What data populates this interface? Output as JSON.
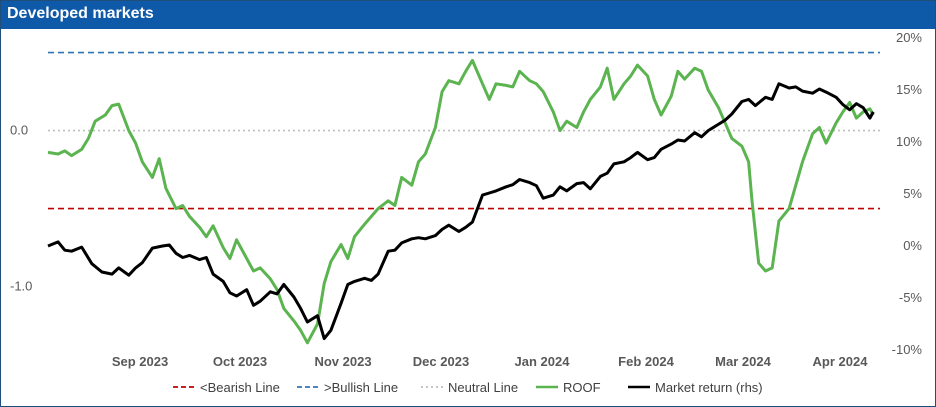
{
  "header": {
    "title": "Developed markets"
  },
  "chart_data": {
    "type": "line",
    "left_axis": {
      "ticks": [
        0.0,
        -1.0
      ],
      "tick_labels": [
        "0.0",
        "-1.0"
      ],
      "range": [
        -1.4,
        0.6
      ]
    },
    "right_axis": {
      "ticks": [
        20,
        15,
        10,
        5,
        0,
        -5,
        -10
      ],
      "tick_labels": [
        "20%",
        "15%",
        "10%",
        "5%",
        "0%",
        "-5%",
        "-10%"
      ],
      "range": [
        -10,
        20
      ]
    },
    "x_tick_labels": [
      "Sep 2023",
      "Oct 2023",
      "Nov 2023",
      "Dec 2023",
      "Jan 2024",
      "Feb 2024",
      "Mar 2024",
      "Apr 2024"
    ],
    "x_range": [
      "2023-08-11",
      "2024-04-14"
    ],
    "grid": false,
    "legend_position": "bottom",
    "reference_lines": [
      {
        "name": "<Bearish Line",
        "value": -0.5,
        "axis": "left",
        "color": "#c00000",
        "style": "dashed"
      },
      {
        "name": ">Bullish Line",
        "value": 0.5,
        "axis": "left",
        "color": "#2e75b6",
        "style": "dashed"
      },
      {
        "name": "Neutral Line",
        "value": 0.0,
        "axis": "left",
        "color": "#bfbfbf",
        "style": "dotted"
      }
    ],
    "series": [
      {
        "name": "ROOF",
        "axis": "left",
        "color": "#5bb450",
        "points": [
          [
            "2023-08-11",
            -0.14
          ],
          [
            "2023-08-14",
            -0.15
          ],
          [
            "2023-08-16",
            -0.13
          ],
          [
            "2023-08-18",
            -0.16
          ],
          [
            "2023-08-21",
            -0.12
          ],
          [
            "2023-08-23",
            -0.05
          ],
          [
            "2023-08-25",
            0.06
          ],
          [
            "2023-08-28",
            0.1
          ],
          [
            "2023-08-30",
            0.16
          ],
          [
            "2023-09-01",
            0.17
          ],
          [
            "2023-09-04",
            0.0
          ],
          [
            "2023-09-06",
            -0.08
          ],
          [
            "2023-09-08",
            -0.2
          ],
          [
            "2023-09-11",
            -0.3
          ],
          [
            "2023-09-13",
            -0.18
          ],
          [
            "2023-09-15",
            -0.37
          ],
          [
            "2023-09-18",
            -0.5
          ],
          [
            "2023-09-20",
            -0.48
          ],
          [
            "2023-09-22",
            -0.55
          ],
          [
            "2023-09-25",
            -0.62
          ],
          [
            "2023-09-27",
            -0.68
          ],
          [
            "2023-09-29",
            -0.61
          ],
          [
            "2023-10-02",
            -0.75
          ],
          [
            "2023-10-04",
            -0.82
          ],
          [
            "2023-10-06",
            -0.7
          ],
          [
            "2023-10-09",
            -0.82
          ],
          [
            "2023-10-11",
            -0.9
          ],
          [
            "2023-10-13",
            -0.88
          ],
          [
            "2023-10-16",
            -0.95
          ],
          [
            "2023-10-18",
            -1.02
          ],
          [
            "2023-10-20",
            -1.14
          ],
          [
            "2023-10-23",
            -1.22
          ],
          [
            "2023-10-25",
            -1.28
          ],
          [
            "2023-10-27",
            -1.36
          ],
          [
            "2023-10-30",
            -1.24
          ],
          [
            "2023-11-01",
            -0.98
          ],
          [
            "2023-11-03",
            -0.84
          ],
          [
            "2023-11-06",
            -0.73
          ],
          [
            "2023-11-08",
            -0.82
          ],
          [
            "2023-11-10",
            -0.68
          ],
          [
            "2023-11-13",
            -0.6
          ],
          [
            "2023-11-15",
            -0.55
          ],
          [
            "2023-11-17",
            -0.5
          ],
          [
            "2023-11-20",
            -0.45
          ],
          [
            "2023-11-22",
            -0.48
          ],
          [
            "2023-11-24",
            -0.3
          ],
          [
            "2023-11-27",
            -0.35
          ],
          [
            "2023-11-29",
            -0.2
          ],
          [
            "2023-12-01",
            -0.15
          ],
          [
            "2023-12-04",
            0.02
          ],
          [
            "2023-12-06",
            0.25
          ],
          [
            "2023-12-08",
            0.32
          ],
          [
            "2023-12-11",
            0.3
          ],
          [
            "2023-12-13",
            0.38
          ],
          [
            "2023-12-15",
            0.45
          ],
          [
            "2023-12-18",
            0.3
          ],
          [
            "2023-12-20",
            0.2
          ],
          [
            "2023-12-22",
            0.3
          ],
          [
            "2023-12-25",
            0.29
          ],
          [
            "2023-12-27",
            0.28
          ],
          [
            "2023-12-29",
            0.38
          ],
          [
            "2024-01-01",
            0.32
          ],
          [
            "2024-01-03",
            0.3
          ],
          [
            "2024-01-05",
            0.25
          ],
          [
            "2024-01-08",
            0.12
          ],
          [
            "2024-01-10",
            0.0
          ],
          [
            "2024-01-12",
            0.06
          ],
          [
            "2024-01-15",
            0.02
          ],
          [
            "2024-01-17",
            0.12
          ],
          [
            "2024-01-19",
            0.2
          ],
          [
            "2024-01-22",
            0.28
          ],
          [
            "2024-01-24",
            0.4
          ],
          [
            "2024-01-26",
            0.2
          ],
          [
            "2024-01-29",
            0.3
          ],
          [
            "2024-01-31",
            0.35
          ],
          [
            "2024-02-02",
            0.42
          ],
          [
            "2024-02-05",
            0.35
          ],
          [
            "2024-02-07",
            0.2
          ],
          [
            "2024-02-09",
            0.1
          ],
          [
            "2024-02-12",
            0.22
          ],
          [
            "2024-02-14",
            0.38
          ],
          [
            "2024-02-16",
            0.33
          ],
          [
            "2024-02-19",
            0.4
          ],
          [
            "2024-02-21",
            0.38
          ],
          [
            "2024-02-23",
            0.26
          ],
          [
            "2024-02-26",
            0.15
          ],
          [
            "2024-02-28",
            0.05
          ],
          [
            "2024-03-01",
            -0.05
          ],
          [
            "2024-03-04",
            -0.1
          ],
          [
            "2024-03-06",
            -0.2
          ],
          [
            "2024-03-07",
            -0.45
          ],
          [
            "2024-03-09",
            -0.85
          ],
          [
            "2024-03-11",
            -0.9
          ],
          [
            "2024-03-13",
            -0.88
          ],
          [
            "2024-03-15",
            -0.58
          ],
          [
            "2024-03-18",
            -0.5
          ],
          [
            "2024-03-20",
            -0.35
          ],
          [
            "2024-03-22",
            -0.2
          ],
          [
            "2024-03-25",
            -0.02
          ],
          [
            "2024-03-27",
            0.02
          ],
          [
            "2024-03-29",
            -0.08
          ],
          [
            "2024-04-01",
            0.05
          ],
          [
            "2024-04-03",
            0.12
          ],
          [
            "2024-04-05",
            0.18
          ],
          [
            "2024-04-07",
            0.08
          ],
          [
            "2024-04-09",
            0.12
          ],
          [
            "2024-04-11",
            0.14
          ],
          [
            "2024-04-12",
            0.1
          ]
        ]
      },
      {
        "name": "Market return (rhs)",
        "axis": "right",
        "color": "#000000",
        "points": [
          [
            "2023-08-11",
            -0.1
          ],
          [
            "2023-08-14",
            0.3
          ],
          [
            "2023-08-16",
            -0.5
          ],
          [
            "2023-08-18",
            -0.6
          ],
          [
            "2023-08-21",
            -0.2
          ],
          [
            "2023-08-24",
            -1.8
          ],
          [
            "2023-08-27",
            -2.6
          ],
          [
            "2023-08-30",
            -2.8
          ],
          [
            "2023-09-01",
            -2.2
          ],
          [
            "2023-09-04",
            -2.9
          ],
          [
            "2023-09-06",
            -2.2
          ],
          [
            "2023-09-08",
            -1.7
          ],
          [
            "2023-09-11",
            -0.3
          ],
          [
            "2023-09-14",
            -0.1
          ],
          [
            "2023-09-16",
            0.0
          ],
          [
            "2023-09-18",
            -0.8
          ],
          [
            "2023-09-20",
            -1.2
          ],
          [
            "2023-09-22",
            -1.0
          ],
          [
            "2023-09-25",
            -1.4
          ],
          [
            "2023-09-27",
            -1.2
          ],
          [
            "2023-09-29",
            -2.8
          ],
          [
            "2023-10-02",
            -3.5
          ],
          [
            "2023-10-04",
            -4.6
          ],
          [
            "2023-10-06",
            -4.9
          ],
          [
            "2023-10-09",
            -4.3
          ],
          [
            "2023-10-11",
            -5.8
          ],
          [
            "2023-10-13",
            -5.4
          ],
          [
            "2023-10-16",
            -4.5
          ],
          [
            "2023-10-18",
            -4.7
          ],
          [
            "2023-10-20",
            -3.8
          ],
          [
            "2023-10-23",
            -5.0
          ],
          [
            "2023-10-25",
            -6.1
          ],
          [
            "2023-10-27",
            -7.4
          ],
          [
            "2023-10-30",
            -6.8
          ],
          [
            "2023-11-01",
            -9.0
          ],
          [
            "2023-11-03",
            -8.2
          ],
          [
            "2023-11-06",
            -5.6
          ],
          [
            "2023-11-08",
            -3.8
          ],
          [
            "2023-11-10",
            -3.5
          ],
          [
            "2023-11-13",
            -3.2
          ],
          [
            "2023-11-15",
            -3.4
          ],
          [
            "2023-11-17",
            -2.8
          ],
          [
            "2023-11-20",
            -0.6
          ],
          [
            "2023-11-22",
            -0.5
          ],
          [
            "2023-11-24",
            0.2
          ],
          [
            "2023-11-27",
            0.6
          ],
          [
            "2023-11-29",
            0.7
          ],
          [
            "2023-12-01",
            0.6
          ],
          [
            "2023-12-04",
            0.9
          ],
          [
            "2023-12-06",
            1.5
          ],
          [
            "2023-12-08",
            1.9
          ],
          [
            "2023-12-11",
            1.3
          ],
          [
            "2023-12-13",
            1.7
          ],
          [
            "2023-12-15",
            2.2
          ],
          [
            "2023-12-18",
            4.8
          ],
          [
            "2023-12-20",
            5.0
          ],
          [
            "2023-12-22",
            5.2
          ],
          [
            "2023-12-25",
            5.6
          ],
          [
            "2023-12-27",
            5.8
          ],
          [
            "2023-12-29",
            6.3
          ],
          [
            "2024-01-01",
            6.0
          ],
          [
            "2024-01-03",
            5.7
          ],
          [
            "2024-01-05",
            4.5
          ],
          [
            "2024-01-08",
            4.8
          ],
          [
            "2024-01-10",
            5.6
          ],
          [
            "2024-01-12",
            5.2
          ],
          [
            "2024-01-15",
            5.9
          ],
          [
            "2024-01-17",
            6.0
          ],
          [
            "2024-01-19",
            5.4
          ],
          [
            "2024-01-22",
            6.6
          ],
          [
            "2024-01-24",
            6.9
          ],
          [
            "2024-01-26",
            7.8
          ],
          [
            "2024-01-29",
            8.0
          ],
          [
            "2024-01-31",
            8.4
          ],
          [
            "2024-02-02",
            8.9
          ],
          [
            "2024-02-05",
            8.2
          ],
          [
            "2024-02-07",
            8.4
          ],
          [
            "2024-02-09",
            9.2
          ],
          [
            "2024-02-12",
            9.7
          ],
          [
            "2024-02-14",
            10.1
          ],
          [
            "2024-02-16",
            10.0
          ],
          [
            "2024-02-19",
            10.8
          ],
          [
            "2024-02-21",
            10.4
          ],
          [
            "2024-02-23",
            11.0
          ],
          [
            "2024-02-26",
            11.6
          ],
          [
            "2024-02-28",
            12.0
          ],
          [
            "2024-03-01",
            12.6
          ],
          [
            "2024-03-04",
            13.8
          ],
          [
            "2024-03-06",
            14.0
          ],
          [
            "2024-03-08",
            13.4
          ],
          [
            "2024-03-11",
            14.2
          ],
          [
            "2024-03-13",
            14.0
          ],
          [
            "2024-03-15",
            15.5
          ],
          [
            "2024-03-18",
            15.1
          ],
          [
            "2024-03-20",
            15.2
          ],
          [
            "2024-03-22",
            14.8
          ],
          [
            "2024-03-25",
            14.6
          ],
          [
            "2024-03-27",
            15.0
          ],
          [
            "2024-03-29",
            14.7
          ],
          [
            "2024-04-01",
            14.2
          ],
          [
            "2024-04-03",
            13.5
          ],
          [
            "2024-04-05",
            13.0
          ],
          [
            "2024-04-07",
            13.6
          ],
          [
            "2024-04-09",
            13.2
          ],
          [
            "2024-04-11",
            12.2
          ],
          [
            "2024-04-12",
            12.8
          ]
        ]
      }
    ]
  }
}
